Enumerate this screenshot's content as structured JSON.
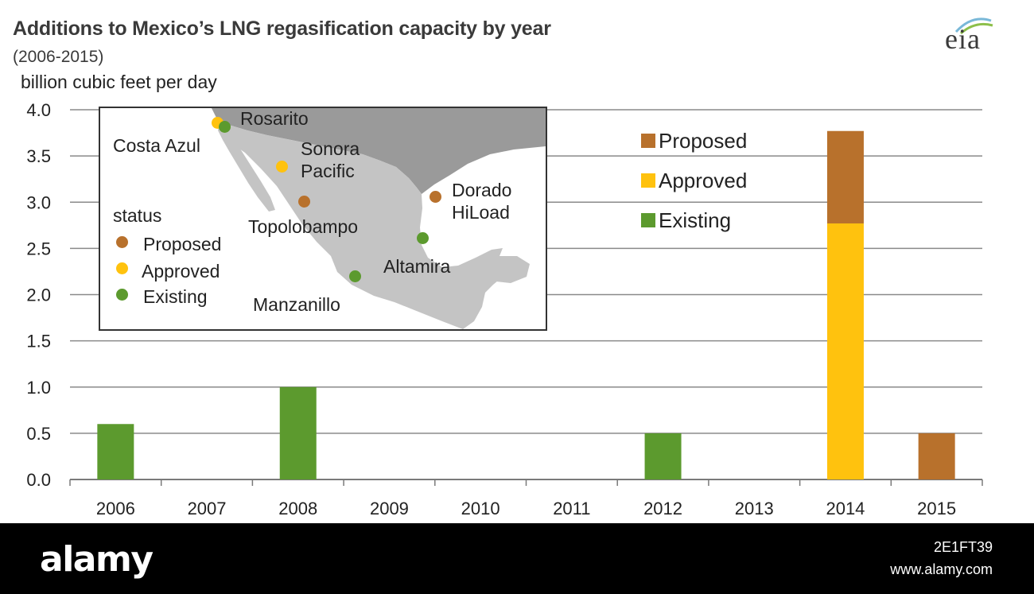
{
  "header": {
    "title": "Additions to Mexico’s LNG regasification capacity by year",
    "subtitle": "(2006-2015)",
    "unit": "billion cubic feet per day",
    "logo": "eia"
  },
  "colors": {
    "proposed": "#B8712C",
    "approved": "#FFC20E",
    "existing": "#5C9A2E",
    "grid": "#8a8a8a",
    "map_land": "#c4c4c4",
    "map_neighbor": "#9a9a9a"
  },
  "chart_data": {
    "type": "bar",
    "stacked": true,
    "title": "Additions to Mexico’s LNG regasification capacity by year",
    "subtitle": "(2006-2015)",
    "ylabel": "billion cubic feet per day",
    "categories": [
      "2006",
      "2007",
      "2008",
      "2009",
      "2010",
      "2011",
      "2012",
      "2013",
      "2014",
      "2015"
    ],
    "ylim": [
      0,
      4.0
    ],
    "yticks": [
      "0.0",
      "0.5",
      "1.0",
      "1.5",
      "2.0",
      "2.5",
      "3.0",
      "3.5",
      "4.0"
    ],
    "grid": true,
    "legend_position": "top-right",
    "series": [
      {
        "name": "Existing",
        "color": "#5C9A2E",
        "values": [
          0.6,
          0,
          1.0,
          0,
          0,
          0,
          0.5,
          0,
          0,
          0
        ]
      },
      {
        "name": "Approved",
        "color": "#FFC20E",
        "values": [
          0,
          0,
          0,
          0,
          0,
          0,
          0,
          0,
          2.77,
          0
        ]
      },
      {
        "name": "Proposed",
        "color": "#B8712C",
        "values": [
          0,
          0,
          0,
          0,
          0,
          0,
          0,
          0,
          1.0,
          0.5
        ]
      }
    ],
    "legend": [
      "Proposed",
      "Approved",
      "Existing"
    ]
  },
  "inset_map": {
    "legend_title": "status",
    "legend_items": [
      {
        "label": "Proposed",
        "color": "#B8712C"
      },
      {
        "label": "Approved",
        "color": "#FFC20E"
      },
      {
        "label": "Existing",
        "color": "#5C9A2E"
      }
    ],
    "terminals": [
      {
        "name": "Rosarito",
        "status": "Existing"
      },
      {
        "name": "Costa Azul",
        "status": "Approved"
      },
      {
        "name": "Sonora Pacific",
        "status": "Approved"
      },
      {
        "name": "Topolobampo",
        "status": "Proposed"
      },
      {
        "name": "Dorado HiLoad",
        "status": "Proposed"
      },
      {
        "name": "Altamira",
        "status": "Existing"
      },
      {
        "name": "Manzanillo",
        "status": "Existing"
      }
    ],
    "labels": {
      "rosarito": "Rosarito",
      "costa_azul": "Costa Azul",
      "sonora_1": "Sonora",
      "sonora_2": "Pacific",
      "topolobampo": "Topolobampo",
      "dorado_1": "Dorado",
      "dorado_2": "HiLoad",
      "altamira": "Altamira",
      "manzanillo": "Manzanillo"
    }
  },
  "footer": {
    "brand": "alamy",
    "image_id": "2E1FT39",
    "url": "www.alamy.com"
  }
}
